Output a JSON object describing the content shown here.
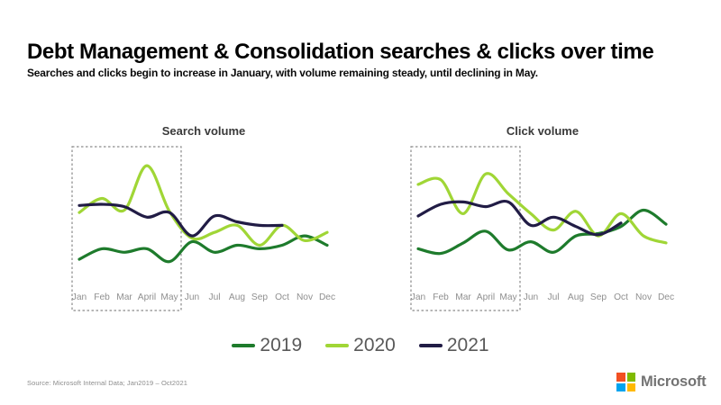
{
  "page": {
    "title": "Debt Management & Consolidation searches & clicks over time",
    "subtitle": "Searches and clicks begin to increase in January, with volume remaining steady, until declining in May.",
    "source": "Source: Microsoft Internal Data; Jan2019 – Oct2021",
    "brand": "Microsoft"
  },
  "colors": {
    "series_2019": "#1e7b2c",
    "series_2020": "#a0d636",
    "series_2021": "#211c45",
    "highlight_box": "#8a8a8a",
    "month_label": "#8f8f8f",
    "chart_title": "#3a3a3a",
    "legend_text": "#595959"
  },
  "legend": {
    "items": [
      {
        "label": "2019",
        "color": "#1e7b2c"
      },
      {
        "label": "2020",
        "color": "#a0d636"
      },
      {
        "label": "2021",
        "color": "#211c45"
      }
    ]
  },
  "brand_logo": {
    "name": "microsoft-logo",
    "squares": [
      {
        "name": "red",
        "color": "#f25022"
      },
      {
        "name": "green",
        "color": "#7fba00"
      },
      {
        "name": "blue",
        "color": "#00a4ef"
      },
      {
        "name": "yellow",
        "color": "#ffb900"
      }
    ]
  },
  "chart_data": [
    {
      "type": "line",
      "title": "Search volume",
      "categories": [
        "Jan",
        "Feb",
        "Mar",
        "April",
        "May",
        "Jun",
        "Jul",
        "Aug",
        "Sep",
        "Oct",
        "Nov",
        "Dec"
      ],
      "xlabel": "",
      "ylabel": "",
      "ylim": [
        0,
        100
      ],
      "grid": false,
      "y_axis_visible": false,
      "legend_position": "bottom-shared",
      "highlight_region": {
        "from": "Jan",
        "to": "May",
        "style": "dashed-box"
      },
      "series": [
        {
          "name": "2019",
          "color": "#1e7b2c",
          "values": [
            13,
            22,
            19,
            22,
            11,
            28,
            19,
            25,
            22,
            25,
            33,
            25
          ]
        },
        {
          "name": "2020",
          "color": "#a0d636",
          "values": [
            53,
            65,
            55,
            93,
            54,
            31,
            36,
            42,
            25,
            42,
            29,
            36
          ]
        },
        {
          "name": "2021",
          "color": "#211c45",
          "values": [
            59,
            60,
            58,
            49,
            53,
            33,
            50,
            45,
            42,
            42
          ]
        }
      ]
    },
    {
      "type": "line",
      "title": "Click volume",
      "categories": [
        "Jan",
        "Feb",
        "Mar",
        "April",
        "May",
        "Jun",
        "Jul",
        "Aug",
        "Sep",
        "Oct",
        "Nov",
        "Dec"
      ],
      "xlabel": "",
      "ylabel": "",
      "ylim": [
        0,
        100
      ],
      "grid": false,
      "y_axis_visible": false,
      "legend_position": "bottom-shared",
      "highlight_region": {
        "from": "Jan",
        "to": "May",
        "style": "dashed-box"
      },
      "series": [
        {
          "name": "2019",
          "color": "#1e7b2c",
          "values": [
            22,
            18,
            27,
            37,
            21,
            28,
            19,
            33,
            35,
            41,
            55,
            43
          ]
        },
        {
          "name": "2020",
          "color": "#a0d636",
          "values": [
            77,
            81,
            52,
            86,
            69,
            52,
            38,
            54,
            33,
            52,
            33,
            27
          ]
        },
        {
          "name": "2021",
          "color": "#211c45",
          "values": [
            50,
            60,
            62,
            58,
            62,
            42,
            49,
            41,
            34,
            44
          ]
        }
      ]
    }
  ]
}
